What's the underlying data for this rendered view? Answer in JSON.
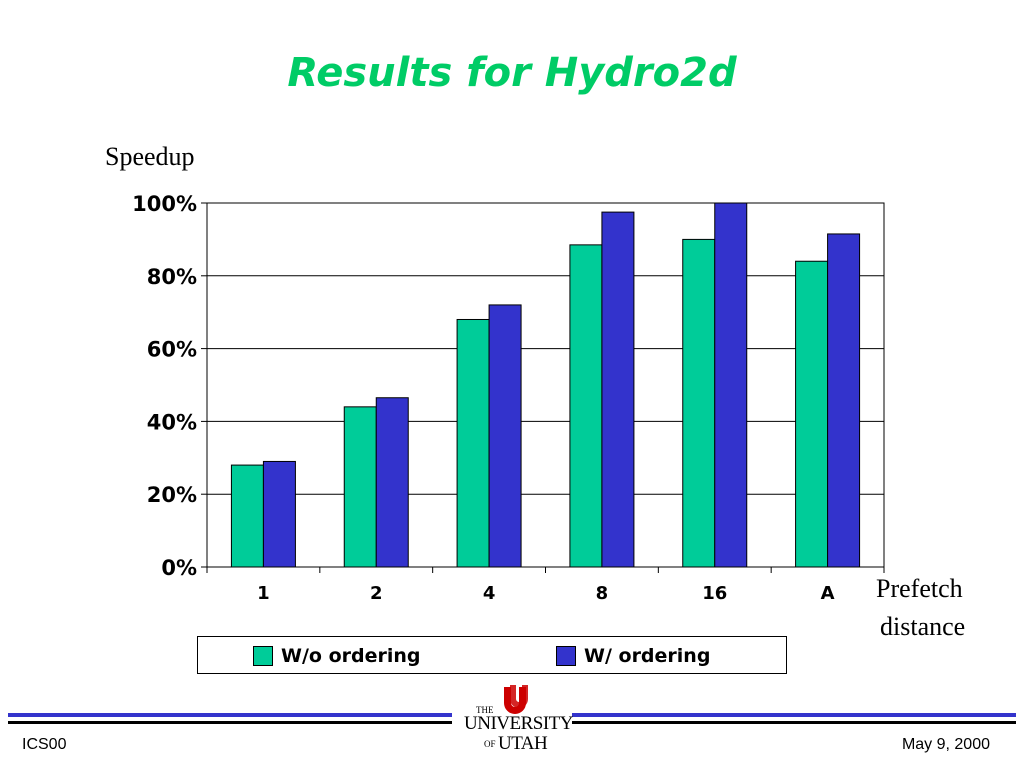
{
  "title": "Results for Hydro2d",
  "colors": {
    "title": "#00cc66",
    "series1": "#00cc99",
    "series2": "#3333cc",
    "footer_bar": "#3333cc",
    "logo": "#cc0000"
  },
  "chart_data": {
    "type": "bar",
    "title": "Results for Hydro2d",
    "ylabel": "Speedup",
    "xlabel": "Prefetch distance",
    "categories": [
      "1",
      "2",
      "4",
      "8",
      "16",
      "A"
    ],
    "ylim": [
      0,
      100
    ],
    "yticks": [
      "0%",
      "20%",
      "40%",
      "60%",
      "80%",
      "100%"
    ],
    "grid": true,
    "legend_position": "bottom",
    "series": [
      {
        "name": "W/o ordering",
        "values": [
          28,
          44,
          68,
          88.5,
          90,
          84
        ]
      },
      {
        "name": "W/ ordering",
        "values": [
          29,
          46.5,
          72,
          97.5,
          100,
          91.5
        ]
      }
    ]
  },
  "xlabel_lines": [
    "Prefetch",
    "distance"
  ],
  "footer": {
    "left": "ICS00",
    "right": "May 9, 2000"
  },
  "logo": {
    "the": "THE",
    "university": "UNIVERSITY",
    "of": "OF",
    "utah": "UTAH"
  }
}
